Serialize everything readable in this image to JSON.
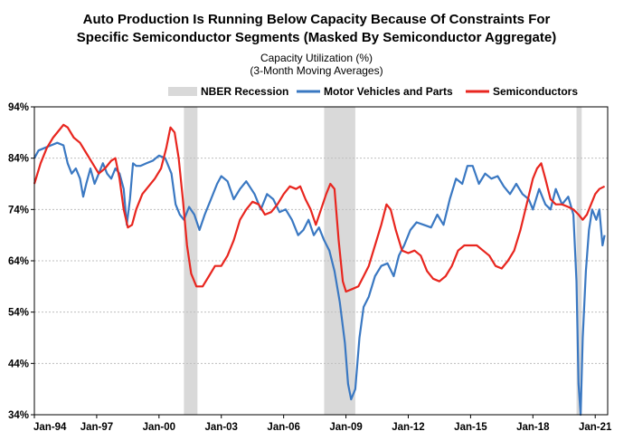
{
  "chart_data": {
    "type": "line",
    "title": "Auto Production Is Running Below Capacity Because Of Constraints For",
    "title_line2": "Specific Semiconductor Segments (Masked By Semiconductor Aggregate)",
    "subtitle": "Capacity Utilization (%)",
    "subtitle_line2": "(3-Month Moving Averages)",
    "xlabel": "",
    "ylabel": "",
    "x_range": [
      1994.0,
      2021.6
    ],
    "ylim": [
      34,
      94
    ],
    "y_ticks": [
      34,
      44,
      54,
      64,
      74,
      84,
      94
    ],
    "y_tick_labels": [
      "34%",
      "44%",
      "54%",
      "64%",
      "74%",
      "84%",
      "94%"
    ],
    "x_ticks": [
      1994,
      1997,
      2000,
      2003,
      2006,
      2009,
      2012,
      2015,
      2018,
      2021
    ],
    "x_tick_labels": [
      "Jan-94",
      "Jan-97",
      "Jan-00",
      "Jan-03",
      "Jan-06",
      "Jan-09",
      "Jan-12",
      "Jan-15",
      "Jan-18",
      "Jan-21"
    ],
    "legend_position": "top",
    "recessions": [
      {
        "name": "NBER Recession",
        "start": 2001.2,
        "end": 2001.85
      },
      {
        "name": "NBER Recession",
        "start": 2007.95,
        "end": 2009.45
      },
      {
        "name": "NBER Recession",
        "start": 2020.1,
        "end": 2020.35
      }
    ],
    "recession_label": "NBER Recession",
    "recession_color": "#d9d9d9",
    "series": [
      {
        "name": "Motor Vehicles and Parts",
        "color": "#3a78c2",
        "points": [
          [
            1994.0,
            84
          ],
          [
            1994.2,
            85.5
          ],
          [
            1994.5,
            86
          ],
          [
            1994.8,
            86.5
          ],
          [
            1995.1,
            87
          ],
          [
            1995.4,
            86.5
          ],
          [
            1995.6,
            83
          ],
          [
            1995.8,
            81
          ],
          [
            1996.0,
            82
          ],
          [
            1996.2,
            80
          ],
          [
            1996.35,
            76.5
          ],
          [
            1996.5,
            79
          ],
          [
            1996.7,
            82
          ],
          [
            1996.9,
            79
          ],
          [
            1997.1,
            81
          ],
          [
            1997.3,
            83
          ],
          [
            1997.5,
            81
          ],
          [
            1997.7,
            80
          ],
          [
            1997.9,
            82
          ],
          [
            1998.1,
            81
          ],
          [
            1998.3,
            78
          ],
          [
            1998.45,
            71
          ],
          [
            1998.6,
            76
          ],
          [
            1998.75,
            83
          ],
          [
            1998.9,
            82.5
          ],
          [
            1999.1,
            82.5
          ],
          [
            1999.4,
            83
          ],
          [
            1999.7,
            83.5
          ],
          [
            2000.0,
            84.5
          ],
          [
            2000.3,
            84
          ],
          [
            2000.6,
            81
          ],
          [
            2000.8,
            75
          ],
          [
            2001.0,
            73
          ],
          [
            2001.2,
            72
          ],
          [
            2001.45,
            74.5
          ],
          [
            2001.7,
            73
          ],
          [
            2001.95,
            70
          ],
          [
            2002.2,
            73
          ],
          [
            2002.5,
            76
          ],
          [
            2002.8,
            79
          ],
          [
            2003.0,
            80.5
          ],
          [
            2003.3,
            79.5
          ],
          [
            2003.6,
            76
          ],
          [
            2003.9,
            78
          ],
          [
            2004.2,
            79.5
          ],
          [
            2004.6,
            77
          ],
          [
            2004.9,
            74
          ],
          [
            2005.2,
            77
          ],
          [
            2005.5,
            76
          ],
          [
            2005.8,
            73.5
          ],
          [
            2006.1,
            74
          ],
          [
            2006.4,
            72
          ],
          [
            2006.7,
            69
          ],
          [
            2006.95,
            70
          ],
          [
            2007.2,
            72
          ],
          [
            2007.45,
            69
          ],
          [
            2007.7,
            70.5
          ],
          [
            2007.95,
            68
          ],
          [
            2008.2,
            66
          ],
          [
            2008.45,
            62
          ],
          [
            2008.7,
            56
          ],
          [
            2008.95,
            48
          ],
          [
            2009.1,
            40
          ],
          [
            2009.25,
            37
          ],
          [
            2009.45,
            39
          ],
          [
            2009.65,
            49
          ],
          [
            2009.85,
            55
          ],
          [
            2010.1,
            57
          ],
          [
            2010.4,
            61
          ],
          [
            2010.7,
            63
          ],
          [
            2011.0,
            63.5
          ],
          [
            2011.3,
            61
          ],
          [
            2011.55,
            65
          ],
          [
            2011.8,
            67
          ],
          [
            2012.1,
            70
          ],
          [
            2012.4,
            71.5
          ],
          [
            2012.75,
            71
          ],
          [
            2013.1,
            70.5
          ],
          [
            2013.4,
            73
          ],
          [
            2013.7,
            71
          ],
          [
            2014.0,
            76
          ],
          [
            2014.3,
            80
          ],
          [
            2014.6,
            79
          ],
          [
            2014.85,
            82.5
          ],
          [
            2015.1,
            82.5
          ],
          [
            2015.4,
            79
          ],
          [
            2015.7,
            81
          ],
          [
            2016.0,
            80
          ],
          [
            2016.3,
            80.5
          ],
          [
            2016.6,
            78.5
          ],
          [
            2016.9,
            77
          ],
          [
            2017.2,
            79
          ],
          [
            2017.5,
            77
          ],
          [
            2017.8,
            76
          ],
          [
            2018.0,
            74
          ],
          [
            2018.3,
            78
          ],
          [
            2018.6,
            75
          ],
          [
            2018.85,
            74
          ],
          [
            2019.1,
            78
          ],
          [
            2019.4,
            75
          ],
          [
            2019.7,
            76.5
          ],
          [
            2019.95,
            73
          ],
          [
            2020.1,
            60
          ],
          [
            2020.2,
            40
          ],
          [
            2020.3,
            34
          ],
          [
            2020.4,
            49
          ],
          [
            2020.55,
            62
          ],
          [
            2020.7,
            70
          ],
          [
            2020.85,
            74
          ],
          [
            2021.05,
            72
          ],
          [
            2021.2,
            74
          ],
          [
            2021.35,
            67
          ],
          [
            2021.45,
            69
          ]
        ]
      },
      {
        "name": "Semiconductors",
        "color": "#e8261f",
        "points": [
          [
            1994.0,
            79
          ],
          [
            1994.3,
            83
          ],
          [
            1994.6,
            86
          ],
          [
            1994.9,
            88
          ],
          [
            1995.2,
            89.5
          ],
          [
            1995.4,
            90.5
          ],
          [
            1995.6,
            90
          ],
          [
            1995.9,
            88
          ],
          [
            1996.2,
            87
          ],
          [
            1996.5,
            85
          ],
          [
            1996.8,
            83
          ],
          [
            1997.1,
            81
          ],
          [
            1997.4,
            82
          ],
          [
            1997.7,
            83.5
          ],
          [
            1997.9,
            84
          ],
          [
            1998.1,
            80
          ],
          [
            1998.3,
            74
          ],
          [
            1998.5,
            70.5
          ],
          [
            1998.7,
            71
          ],
          [
            1998.9,
            74
          ],
          [
            1999.2,
            77
          ],
          [
            1999.5,
            78.5
          ],
          [
            1999.8,
            80
          ],
          [
            2000.1,
            82
          ],
          [
            2000.35,
            86
          ],
          [
            2000.55,
            90
          ],
          [
            2000.75,
            89
          ],
          [
            2000.95,
            84
          ],
          [
            2001.15,
            76
          ],
          [
            2001.35,
            67
          ],
          [
            2001.55,
            61.5
          ],
          [
            2001.8,
            59
          ],
          [
            2002.1,
            59
          ],
          [
            2002.4,
            61
          ],
          [
            2002.7,
            63
          ],
          [
            2003.0,
            63
          ],
          [
            2003.3,
            65
          ],
          [
            2003.6,
            68
          ],
          [
            2003.9,
            72
          ],
          [
            2004.2,
            74
          ],
          [
            2004.5,
            75.5
          ],
          [
            2004.8,
            75
          ],
          [
            2005.1,
            73
          ],
          [
            2005.4,
            73.5
          ],
          [
            2005.7,
            75
          ],
          [
            2006.0,
            77
          ],
          [
            2006.3,
            78.5
          ],
          [
            2006.6,
            78
          ],
          [
            2006.8,
            78.5
          ],
          [
            2007.05,
            76
          ],
          [
            2007.3,
            74
          ],
          [
            2007.55,
            71
          ],
          [
            2007.8,
            74
          ],
          [
            2008.05,
            77
          ],
          [
            2008.25,
            79
          ],
          [
            2008.45,
            78
          ],
          [
            2008.65,
            68
          ],
          [
            2008.85,
            60
          ],
          [
            2009.0,
            58
          ],
          [
            2009.3,
            58.5
          ],
          [
            2009.6,
            59
          ],
          [
            2009.85,
            61
          ],
          [
            2010.1,
            63
          ],
          [
            2010.4,
            67
          ],
          [
            2010.7,
            71
          ],
          [
            2010.95,
            75
          ],
          [
            2011.15,
            74
          ],
          [
            2011.4,
            70
          ],
          [
            2011.7,
            66
          ],
          [
            2012.0,
            65.5
          ],
          [
            2012.3,
            66
          ],
          [
            2012.6,
            65
          ],
          [
            2012.9,
            62
          ],
          [
            2013.2,
            60.5
          ],
          [
            2013.5,
            60
          ],
          [
            2013.8,
            61
          ],
          [
            2014.1,
            63
          ],
          [
            2014.4,
            66
          ],
          [
            2014.7,
            67
          ],
          [
            2015.0,
            67
          ],
          [
            2015.3,
            67
          ],
          [
            2015.6,
            66
          ],
          [
            2015.9,
            65
          ],
          [
            2016.2,
            63
          ],
          [
            2016.5,
            62.5
          ],
          [
            2016.8,
            64
          ],
          [
            2017.1,
            66
          ],
          [
            2017.4,
            70
          ],
          [
            2017.7,
            75
          ],
          [
            2018.0,
            80
          ],
          [
            2018.2,
            82
          ],
          [
            2018.4,
            83
          ],
          [
            2018.6,
            80
          ],
          [
            2018.85,
            76
          ],
          [
            2019.1,
            75
          ],
          [
            2019.4,
            75
          ],
          [
            2019.7,
            74.5
          ],
          [
            2019.95,
            74
          ],
          [
            2020.2,
            73
          ],
          [
            2020.4,
            72
          ],
          [
            2020.6,
            73
          ],
          [
            2020.8,
            75
          ],
          [
            2021.0,
            77
          ],
          [
            2021.2,
            78
          ],
          [
            2021.45,
            78.5
          ]
        ]
      }
    ]
  }
}
